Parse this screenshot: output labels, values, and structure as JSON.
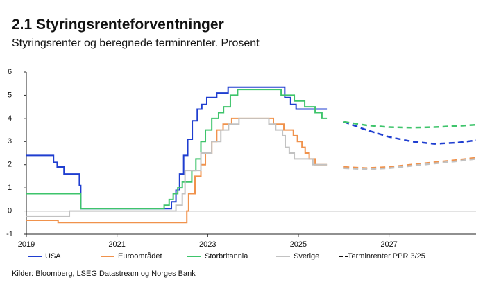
{
  "chart_data": {
    "type": "line",
    "step": true,
    "title": "2.1 Styringsrenteforventninger",
    "subtitle": "Styringsrenter og beregnede terminrenter. Prosent",
    "source": "Kilder: Bloomberg, LSEG Datastream og Norges Bank",
    "xlim": [
      2019,
      2028.92
    ],
    "xticks": [
      2019,
      2021,
      2023,
      2025,
      2027
    ],
    "ylim": [
      -1,
      6
    ],
    "yticks": [
      -1,
      0,
      1,
      2,
      3,
      4,
      5,
      6
    ],
    "series": [
      {
        "name": "USA",
        "color": "#1f3ed0",
        "x": [
          2019.0,
          2019.6,
          2019.68,
          2019.83,
          2020.17,
          2020.2,
          2022.2,
          2022.3,
          2022.38,
          2022.47,
          2022.56,
          2022.66,
          2022.77,
          2022.87,
          2022.98,
          2023.2,
          2023.45,
          2024.7,
          2024.83,
          2024.95,
          2025.63
        ],
        "values": [
          2.4,
          2.1,
          1.9,
          1.6,
          1.1,
          0.1,
          0.4,
          0.9,
          1.6,
          2.4,
          3.1,
          3.9,
          4.4,
          4.6,
          4.9,
          5.1,
          5.35,
          4.9,
          4.6,
          4.4,
          4.4
        ],
        "forward": {
          "x": [
            2026.0,
            2026.5,
            2027.0,
            2027.5,
            2028.0,
            2028.5,
            2028.92
          ],
          "values": [
            3.85,
            3.5,
            3.2,
            3.0,
            2.9,
            2.95,
            3.05
          ]
        }
      },
      {
        "name": "Euroområdet",
        "color": "#f0924c",
        "x": [
          2019.0,
          2019.7,
          2022.54,
          2022.58,
          2022.72,
          2022.85,
          2022.95,
          2023.09,
          2023.2,
          2023.34,
          2023.53,
          2023.69,
          2024.45,
          2024.68,
          2024.89,
          2024.98,
          2025.08,
          2025.15,
          2025.24,
          2025.37,
          2025.63
        ],
        "values": [
          -0.4,
          -0.5,
          0,
          0.75,
          1.5,
          2.0,
          2.5,
          3.0,
          3.5,
          3.75,
          4.0,
          4.0,
          3.75,
          3.5,
          3.25,
          3.0,
          2.75,
          2.5,
          2.25,
          2.0,
          2.0
        ],
        "forward": {
          "x": [
            2026.0,
            2026.5,
            2027.0,
            2027.5,
            2028.0,
            2028.5,
            2028.92
          ],
          "values": [
            1.9,
            1.85,
            1.9,
            2.0,
            2.1,
            2.2,
            2.3
          ]
        }
      },
      {
        "name": "Storbritannia",
        "color": "#3ec46b",
        "x": [
          2019.0,
          2020.2,
          2022.04,
          2022.15,
          2022.24,
          2022.34,
          2022.44,
          2022.65,
          2022.74,
          2022.85,
          2022.95,
          2023.09,
          2023.24,
          2023.35,
          2023.5,
          2023.66,
          2024.62,
          2024.91,
          2025.14,
          2025.37,
          2025.52,
          2025.63
        ],
        "values": [
          0.75,
          0.1,
          0.25,
          0.5,
          0.75,
          1.0,
          1.25,
          1.75,
          2.25,
          3.0,
          3.5,
          4.0,
          4.25,
          4.5,
          5.0,
          5.25,
          5.0,
          4.75,
          4.5,
          4.25,
          4.0,
          4.0
        ],
        "forward": {
          "x": [
            2026.0,
            2026.5,
            2027.0,
            2027.5,
            2028.0,
            2028.5,
            2028.92
          ],
          "values": [
            3.85,
            3.7,
            3.62,
            3.6,
            3.62,
            3.67,
            3.72
          ]
        }
      },
      {
        "name": "Sverige",
        "color": "#c2c2c2",
        "x": [
          2019.0,
          2019.95,
          2022.3,
          2022.44,
          2022.5,
          2022.85,
          2023.09,
          2023.29,
          2023.46,
          2023.69,
          2024.35,
          2024.5,
          2024.65,
          2024.71,
          2024.8,
          2024.91,
          2025.02,
          2025.32,
          2025.63
        ],
        "values": [
          -0.25,
          0,
          0.25,
          0.75,
          1.75,
          2.5,
          3.0,
          3.5,
          3.75,
          4.0,
          3.75,
          3.5,
          3.25,
          2.75,
          2.5,
          2.25,
          2.25,
          2.0,
          2.0
        ],
        "forward": {
          "x": [
            2026.0,
            2026.5,
            2027.0,
            2027.5,
            2028.0,
            2028.5,
            2028.92
          ],
          "values": [
            1.85,
            1.8,
            1.85,
            1.95,
            2.05,
            2.15,
            2.25
          ]
        }
      }
    ],
    "forward_legend": {
      "label": "Terminrenter PPR 3/25",
      "color": "#111111"
    }
  }
}
